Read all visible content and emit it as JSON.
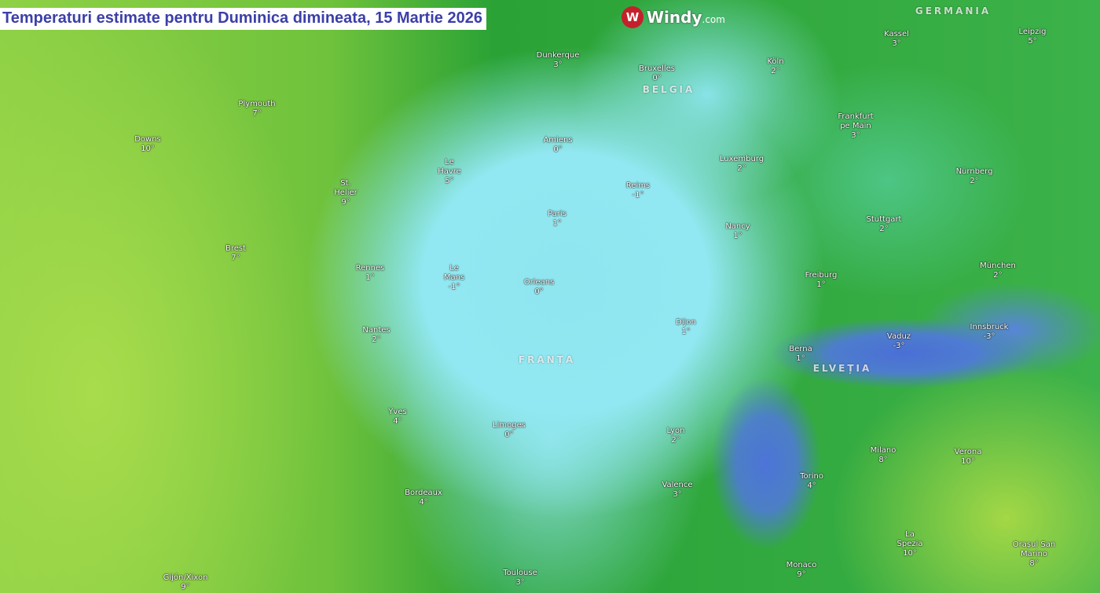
{
  "title": "Temperaturi estimate pentru Duminica dimineata, 15 Martie 2026",
  "logo": {
    "text": "Windy",
    "suffix": ".com",
    "icon": "windy-logo-icon"
  },
  "colors": {
    "title_text": "#3b3fa8",
    "cold": "#4a6fd6",
    "cool": "#8fe6ef",
    "mild": "#2aa235",
    "warm": "#a8dc4c"
  },
  "countries": [
    "GERMANIA",
    "BELGIA",
    "FRANȚA",
    "ELVEȚIA"
  ],
  "cities": [
    {
      "name": "Plymouth",
      "temp": "7°"
    },
    {
      "name": "Downs",
      "temp": "10°"
    },
    {
      "name": "St.\nHelier",
      "temp": "9°"
    },
    {
      "name": "Brest",
      "temp": "7°"
    },
    {
      "name": "Rennes",
      "temp": "1°"
    },
    {
      "name": "Nantes",
      "temp": "2°"
    },
    {
      "name": "Le\nHavre",
      "temp": "5°"
    },
    {
      "name": "Dunkerque",
      "temp": "3°"
    },
    {
      "name": "Amiens",
      "temp": "0°"
    },
    {
      "name": "Paris",
      "temp": "1°"
    },
    {
      "name": "Reims",
      "temp": "-1°"
    },
    {
      "name": "Le\nMans",
      "temp": "-1°"
    },
    {
      "name": "Orleans",
      "temp": "0°"
    },
    {
      "name": "Bruxelles",
      "temp": "0°"
    },
    {
      "name": "Köln",
      "temp": "2°"
    },
    {
      "name": "Kassel",
      "temp": "3°"
    },
    {
      "name": "Leipzig",
      "temp": "5°"
    },
    {
      "name": "Frankfurt\npe Main",
      "temp": "3°"
    },
    {
      "name": "Luxemburg",
      "temp": "2°"
    },
    {
      "name": "Nürnberg",
      "temp": "2°"
    },
    {
      "name": "Nancy",
      "temp": "1°"
    },
    {
      "name": "Stuttgart",
      "temp": "2°"
    },
    {
      "name": "Freiburg",
      "temp": "1°"
    },
    {
      "name": "München",
      "temp": "2°"
    },
    {
      "name": "Dijon",
      "temp": "1°"
    },
    {
      "name": "Berna",
      "temp": "1°"
    },
    {
      "name": "Vaduz",
      "temp": "-3°"
    },
    {
      "name": "Innsbruck",
      "temp": "-3°"
    },
    {
      "name": "Yves",
      "temp": "4°"
    },
    {
      "name": "Limoges",
      "temp": "0°"
    },
    {
      "name": "Lyon",
      "temp": "2°"
    },
    {
      "name": "Milano",
      "temp": "8°"
    },
    {
      "name": "Verona",
      "temp": "10°"
    },
    {
      "name": "Torino",
      "temp": "4°"
    },
    {
      "name": "Bordeaux",
      "temp": "4°"
    },
    {
      "name": "Valence",
      "temp": "3°"
    },
    {
      "name": "Toulouse",
      "temp": "3°"
    },
    {
      "name": "Monaco",
      "temp": "9°"
    },
    {
      "name": "La\nSpezia",
      "temp": "10°"
    },
    {
      "name": "Orașul San\nMarino",
      "temp": "8°"
    },
    {
      "name": "Gijón/Xixon",
      "temp": "9°"
    }
  ]
}
